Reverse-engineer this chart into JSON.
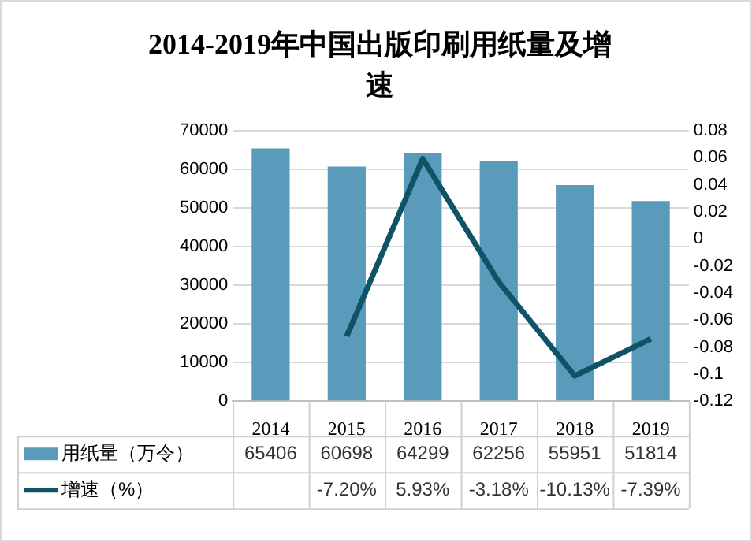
{
  "chart_data": {
    "type": "bar",
    "title": "2014-2019年中国出版印刷用纸量及增速",
    "categories": [
      "2014",
      "2015",
      "2016",
      "2017",
      "2018",
      "2019"
    ],
    "series": [
      {
        "name": "用纸量（万令）",
        "color": "#5a9bbb",
        "values": [
          65406,
          60698,
          64299,
          62256,
          55951,
          51814
        ],
        "value_labels": [
          "65406",
          "60698",
          "64299",
          "62256",
          "55951",
          "51814"
        ]
      },
      {
        "name": "增速（%）",
        "type": "line",
        "axis": "y2",
        "color": "#0e5366",
        "values": [
          null,
          -0.072,
          0.0593,
          -0.0318,
          -0.1013,
          -0.0739
        ],
        "value_labels": [
          null,
          "-7.20%",
          "5.93%",
          "-3.18%",
          "-10.13%",
          "-7.39%"
        ]
      }
    ],
    "ylim": [
      0,
      70000
    ],
    "yticks": [
      0,
      10000,
      20000,
      30000,
      40000,
      50000,
      60000,
      70000
    ],
    "y2lim": [
      -0.12,
      0.08
    ],
    "y2ticks": [
      -0.12,
      {
        "value": -0.1,
        "label": "-0.1"
      },
      -0.08,
      -0.06,
      -0.04,
      -0.02,
      0,
      0.02,
      0.04,
      0.06,
      0.08
    ],
    "grid": "y",
    "legend": "bottom",
    "marker": "none"
  }
}
